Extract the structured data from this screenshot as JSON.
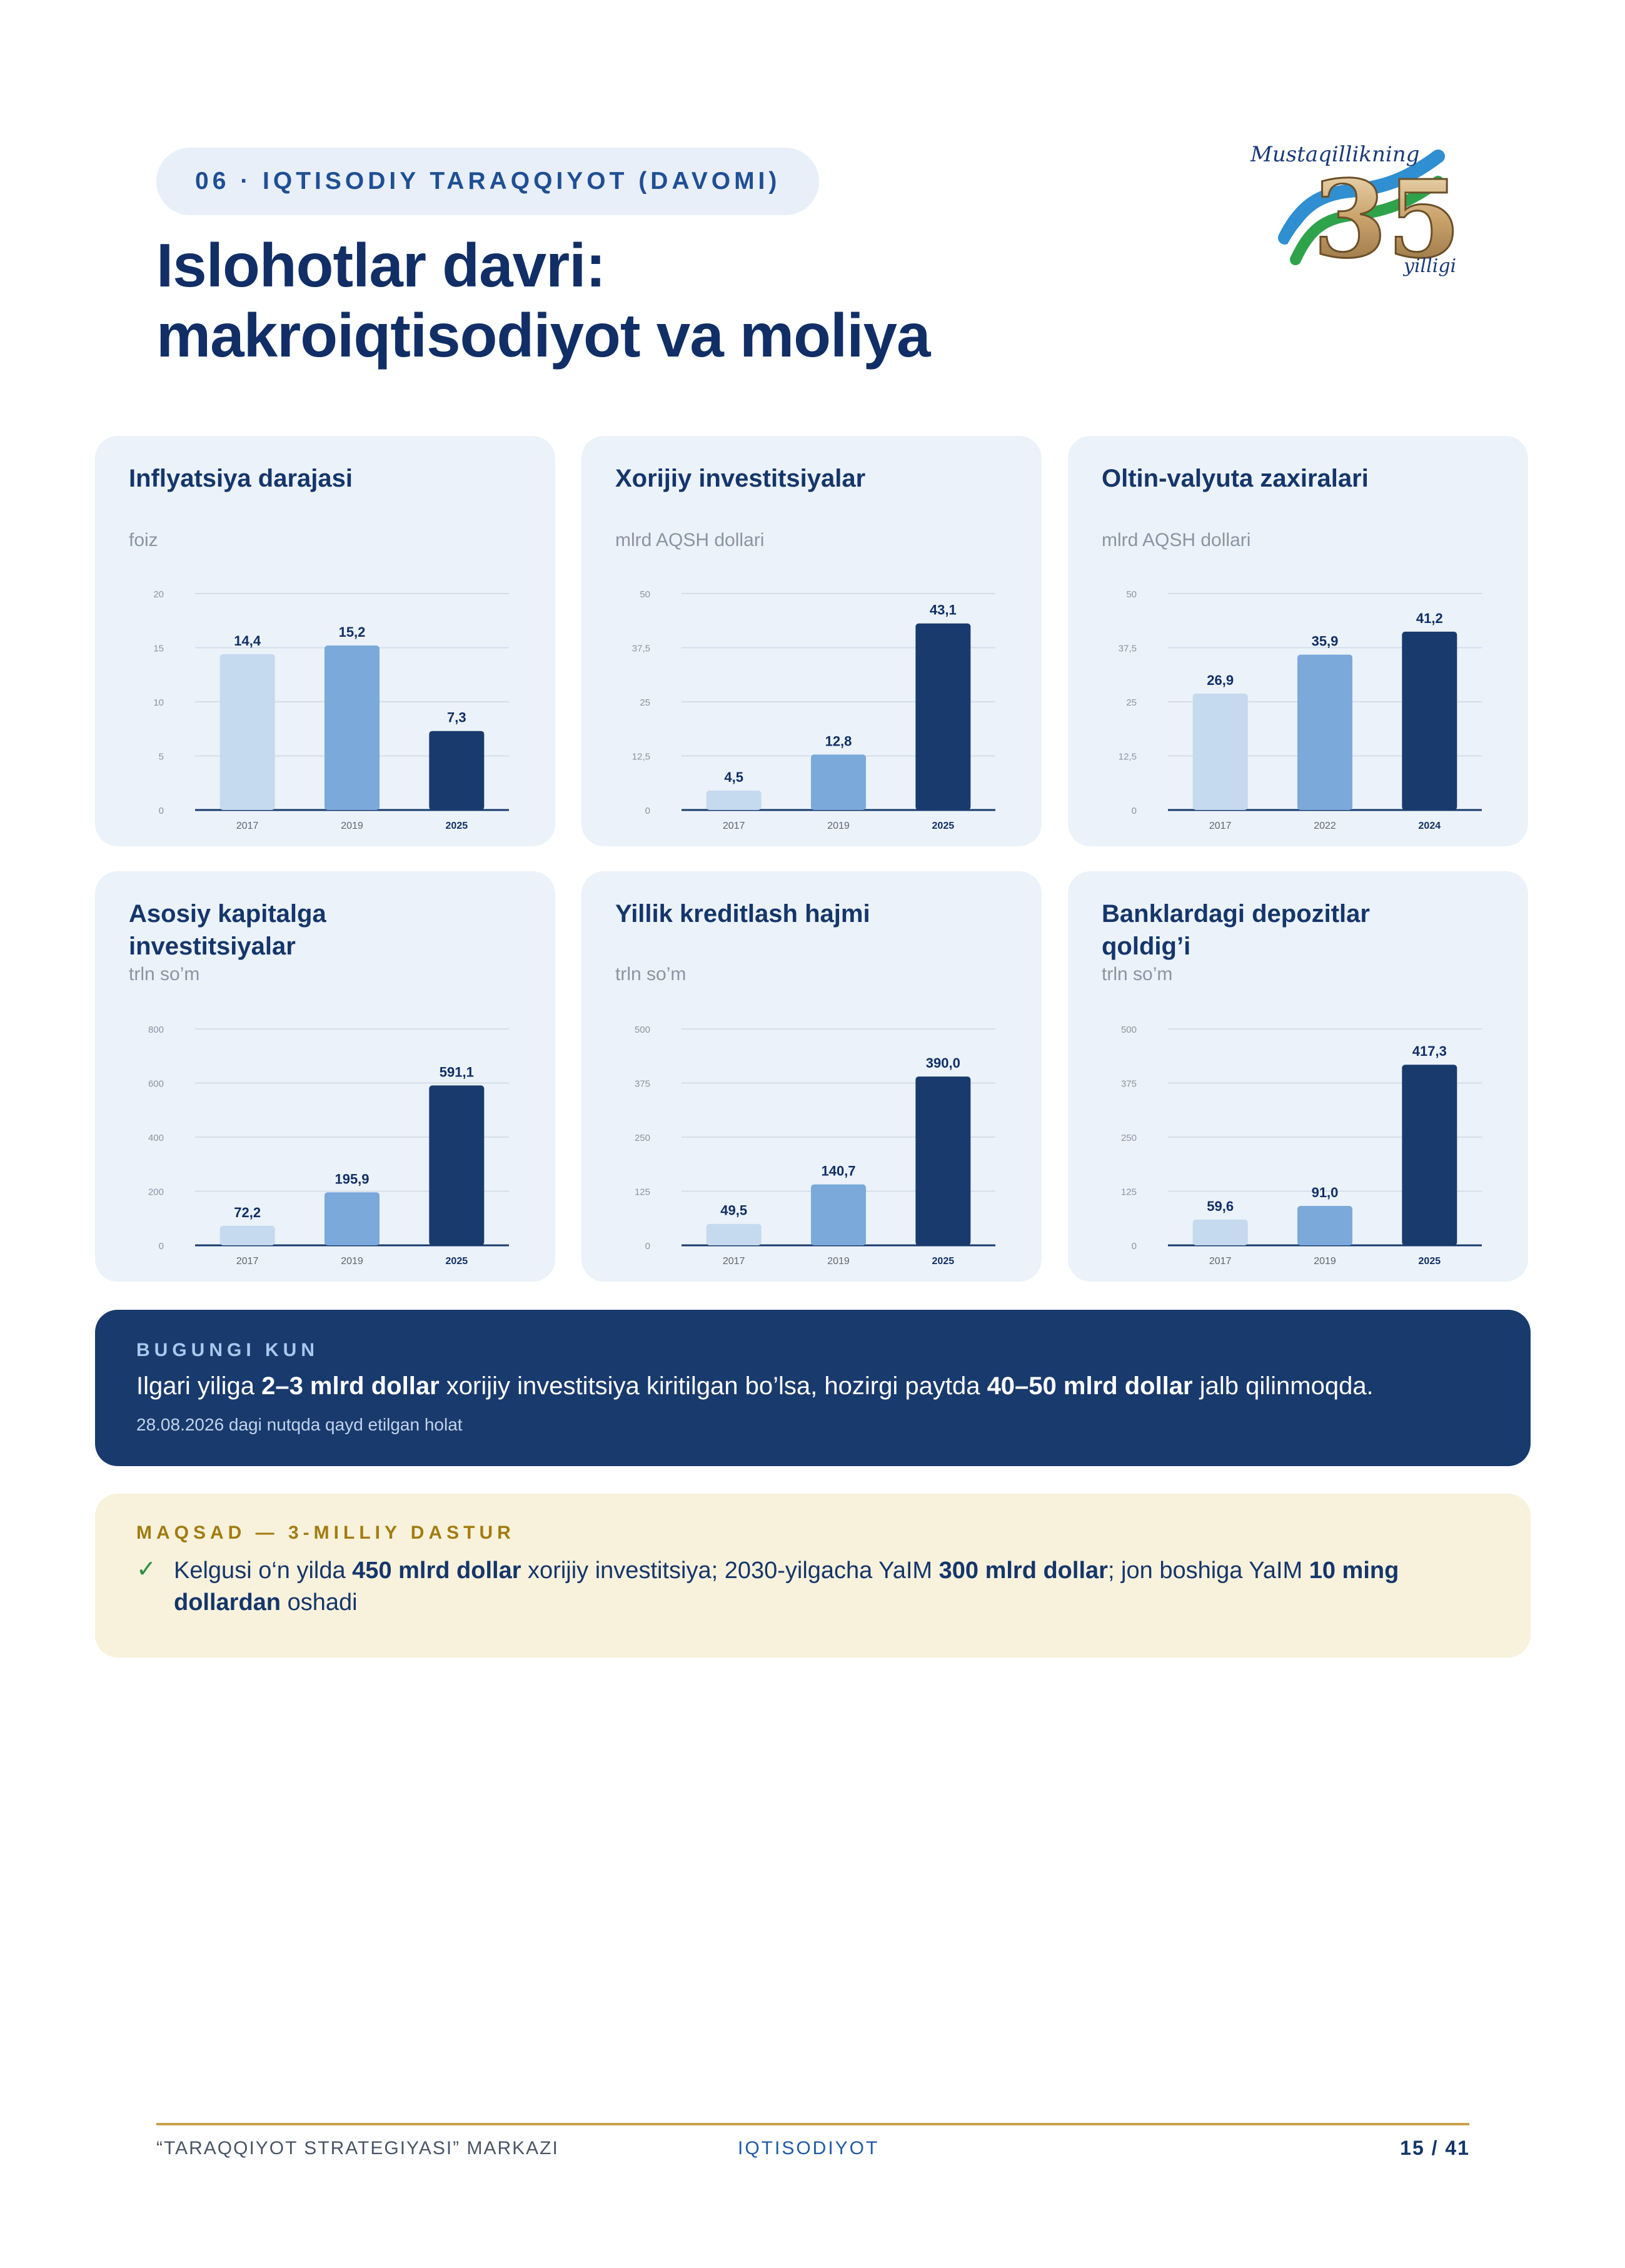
{
  "header": {
    "section_label": "06 · IQTISODIY TARAQQIYOT (DAVOMI)",
    "title_line1": "Islohotlar davri:",
    "title_line2": "makroiqtisodiyot va moliya",
    "logo_text_top": "Mustaqillikning",
    "logo_number": "35",
    "logo_text_bottom": "yilligi"
  },
  "chart_data": [
    {
      "type": "bar",
      "title": "Inflyatsiya darajasi",
      "ylabel": "foiz",
      "categories": [
        "2017",
        "2019",
        "2025"
      ],
      "values": [
        14.4,
        15.2,
        7.3
      ],
      "value_labels": [
        "14,4",
        "15,2",
        "7,3"
      ],
      "ylim": [
        0,
        20
      ],
      "ticks": [
        0,
        5,
        10,
        15,
        20
      ],
      "tick_labels": [
        "0",
        "5",
        "10",
        "15",
        "20"
      ],
      "colors": [
        "#c5d9ef",
        "#7aa9da",
        "#193a6d"
      ],
      "grid": true
    },
    {
      "type": "bar",
      "title": "Xorijiy investitsiyalar",
      "ylabel": "mlrd AQSH dollari",
      "categories": [
        "2017",
        "2019",
        "2025"
      ],
      "values": [
        4.5,
        12.8,
        43.1
      ],
      "value_labels": [
        "4,5",
        "12,8",
        "43,1"
      ],
      "ylim": [
        0,
        50
      ],
      "ticks": [
        0,
        12.5,
        25,
        37.5,
        50
      ],
      "tick_labels": [
        "0",
        "12,5",
        "25",
        "37,5",
        "50"
      ],
      "colors": [
        "#c5d9ef",
        "#7aa9da",
        "#193a6d"
      ],
      "grid": true
    },
    {
      "type": "bar",
      "title": "Oltin-valyuta zaxiralari",
      "ylabel": "mlrd AQSH dollari",
      "categories": [
        "2017",
        "2022",
        "2024"
      ],
      "values": [
        26.9,
        35.9,
        41.2
      ],
      "value_labels": [
        "26,9",
        "35,9",
        "41,2"
      ],
      "ylim": [
        0,
        50
      ],
      "ticks": [
        0,
        12.5,
        25,
        37.5,
        50
      ],
      "tick_labels": [
        "0",
        "12,5",
        "25",
        "37,5",
        "50"
      ],
      "colors": [
        "#c5d9ef",
        "#7aa9da",
        "#193a6d"
      ],
      "grid": true
    },
    {
      "type": "bar",
      "title": "Asosiy kapitalga investitsiyalar",
      "ylabel": "trln so’m",
      "categories": [
        "2017",
        "2019",
        "2025"
      ],
      "values": [
        72.2,
        195.9,
        591.1
      ],
      "value_labels": [
        "72,2",
        "195,9",
        "591,1"
      ],
      "ylim": [
        0,
        800
      ],
      "ticks": [
        0,
        200,
        400,
        600,
        800
      ],
      "tick_labels": [
        "0",
        "200",
        "400",
        "600",
        "800"
      ],
      "colors": [
        "#c5d9ef",
        "#7aa9da",
        "#193a6d"
      ],
      "grid": true
    },
    {
      "type": "bar",
      "title": "Yillik kreditlash hajmi",
      "ylabel": "trln so’m",
      "categories": [
        "2017",
        "2019",
        "2025"
      ],
      "values": [
        49.5,
        140.7,
        390.0
      ],
      "value_labels": [
        "49,5",
        "140,7",
        "390,0"
      ],
      "ylim": [
        0,
        500
      ],
      "ticks": [
        0,
        125,
        250,
        375,
        500
      ],
      "tick_labels": [
        "0",
        "125",
        "250",
        "375",
        "500"
      ],
      "colors": [
        "#c5d9ef",
        "#7aa9da",
        "#193a6d"
      ],
      "grid": true
    },
    {
      "type": "bar",
      "title": "Banklardagi depozitlar qoldig’i",
      "ylabel": "trln so’m",
      "categories": [
        "2017",
        "2019",
        "2025"
      ],
      "values": [
        59.6,
        91.0,
        417.3
      ],
      "value_labels": [
        "59,6",
        "91,0",
        "417,3"
      ],
      "ylim": [
        0,
        500
      ],
      "ticks": [
        0,
        125,
        250,
        375,
        500
      ],
      "tick_labels": [
        "0",
        "125",
        "250",
        "375",
        "500"
      ],
      "colors": [
        "#c5d9ef",
        "#7aa9da",
        "#193a6d"
      ],
      "grid": true
    }
  ],
  "bugungi": {
    "label": "BUGUNGI KUN",
    "text_1": "Ilgari yiliga ",
    "bold_1": "2–3 mlrd dollar",
    "text_2": " xorijiy investitsiya kiritilgan bo’lsa, hozirgi paytda ",
    "bold_2": "40–50 mlrd dollar",
    "text_3": " jalb qilinmoqda.",
    "note": "28.08.2026 dagi nutqda qayd etilgan holat"
  },
  "maqsad": {
    "label": "MAQSAD — 3-MILLIY DASTUR",
    "check": "✓",
    "text_1": "Kelgusi o‘n yilda ",
    "bold_1": "450 mlrd dollar",
    "text_2": " xorijiy investitsiya; 2030-yilgacha YaIM ",
    "bold_2": "300 mlrd dollar",
    "text_3": "; jon boshiga YaIM ",
    "bold_3": "10 ming dollardan",
    "text_4": " oshadi"
  },
  "footer": {
    "left": "“TARAQQIYOT STRATEGIYASI” MARKAZI",
    "center": "IQTISODIYOT",
    "page": "15 / 41"
  }
}
